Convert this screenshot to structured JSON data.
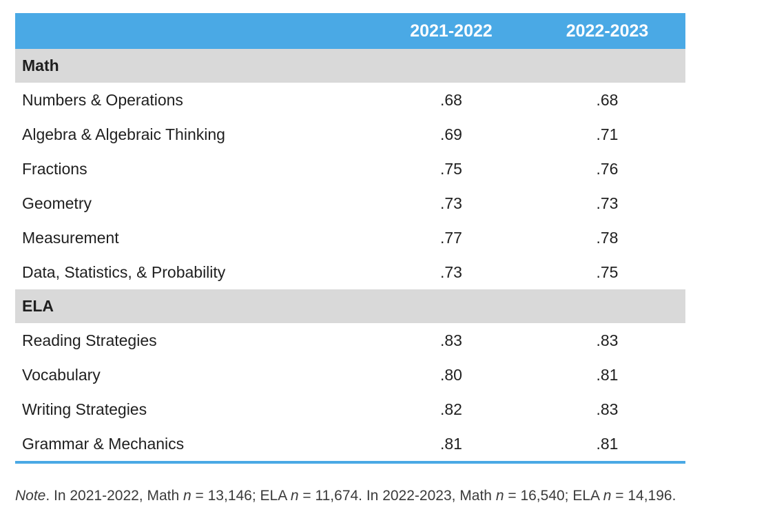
{
  "table": {
    "headers": [
      "",
      "2021-2022",
      "2022-2023"
    ],
    "sections": [
      {
        "title": "Math",
        "rows": [
          {
            "label": "Numbers & Operations",
            "y1": ".68",
            "y2": ".68"
          },
          {
            "label": "Algebra & Algebraic Thinking",
            "y1": ".69",
            "y2": ".71"
          },
          {
            "label": "Fractions",
            "y1": ".75",
            "y2": ".76"
          },
          {
            "label": "Geometry",
            "y1": ".73",
            "y2": ".73"
          },
          {
            "label": "Measurement",
            "y1": ".77",
            "y2": ".78"
          },
          {
            "label": "Data, Statistics, & Probability",
            "y1": ".73",
            "y2": ".75"
          }
        ]
      },
      {
        "title": "ELA",
        "rows": [
          {
            "label": "Reading Strategies",
            "y1": ".83",
            "y2": ".83"
          },
          {
            "label": "Vocabulary",
            "y1": ".80",
            "y2": ".81"
          },
          {
            "label": "Writing Strategies",
            "y1": ".82",
            "y2": ".83"
          },
          {
            "label": "Grammar & Mechanics",
            "y1": ".81",
            "y2": ".81"
          }
        ]
      }
    ]
  },
  "note": {
    "lead": "Note",
    "p1": ". In 2021-2022, Math ",
    "n1": "n",
    "p2": " = 13,146; ELA ",
    "n2": "n",
    "p3": " = 11,674. In 2022-2023, Math ",
    "n3": "n",
    "p4": " = 16,540; ELA ",
    "n4": "n",
    "p5": " = 14,196."
  },
  "colors": {
    "header_bg": "#4aa9e5",
    "section_bg": "#d9d9d9"
  }
}
